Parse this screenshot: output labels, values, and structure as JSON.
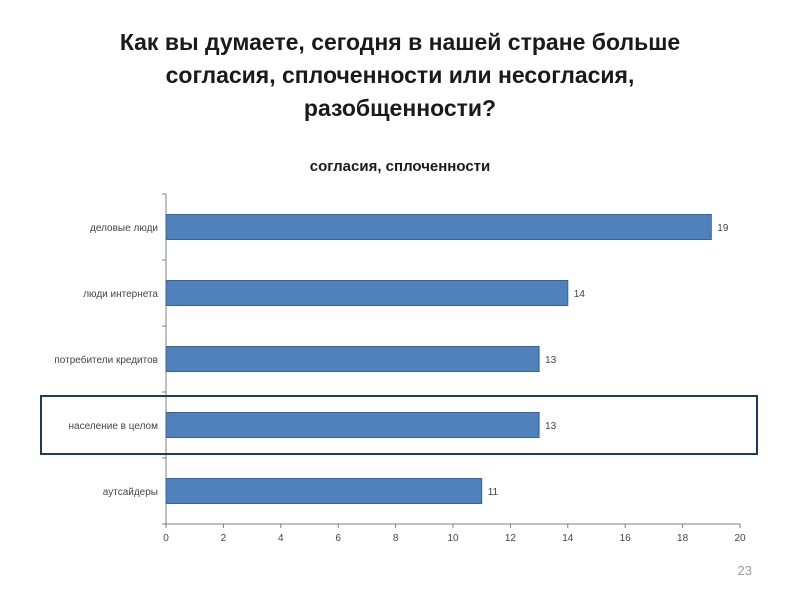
{
  "slide": {
    "title_lines": [
      "Как вы думаете, сегодня в нашей стране больше",
      "согласия, сплоченности или несогласия,",
      "разобщенности?"
    ],
    "page_number": "23"
  },
  "chart_data": {
    "type": "bar",
    "orientation": "horizontal",
    "title": "согласия, сплоченности",
    "categories": [
      "деловые люди",
      "люди интернета",
      "потребители кредитов",
      "население в целом",
      "аутсайдеры"
    ],
    "values": [
      19,
      14,
      13,
      13,
      11
    ],
    "data_labels": [
      "19",
      "14",
      "13",
      "13",
      "11"
    ],
    "xlim": [
      0,
      20
    ],
    "x_ticks": [
      0,
      2,
      4,
      6,
      8,
      10,
      12,
      14,
      16,
      18,
      20
    ],
    "grid": false,
    "legend": "none",
    "bar_color": "#4f81bd",
    "bar_border_color": "#3a6394",
    "highlight_category": "население в целом",
    "highlight_color": "#1f3a5f"
  }
}
